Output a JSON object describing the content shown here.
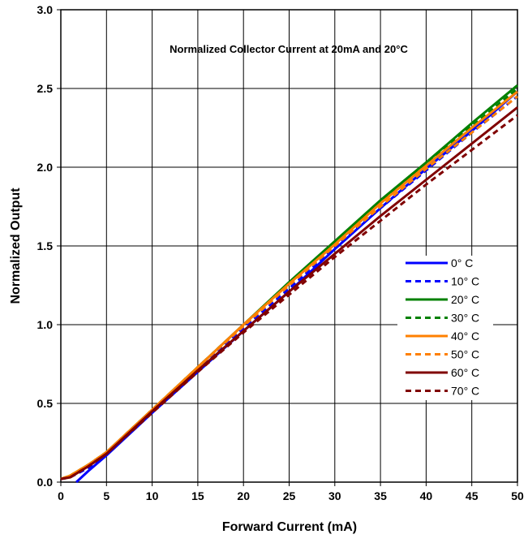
{
  "chart_data": {
    "type": "line",
    "title": "Normalized Collector Current at 20mA and 20°C",
    "xlabel": "Forward Current (mA)",
    "ylabel": "Normalized Output",
    "xlim": [
      0,
      50
    ],
    "ylim": [
      0,
      3.0
    ],
    "x_ticks": [
      "0",
      "5",
      "10",
      "15",
      "20",
      "25",
      "30",
      "35",
      "40",
      "45",
      "50"
    ],
    "y_ticks": [
      "0.0",
      "0.5",
      "1.0",
      "1.5",
      "2.0",
      "2.5",
      "3.0"
    ],
    "grid": true,
    "legend_position": "right",
    "series": [
      {
        "name": "0° C",
        "color": "#0000ff",
        "dash": "solid",
        "x": [
          1.7,
          3,
          5,
          10,
          15,
          20,
          25,
          30,
          35,
          40,
          45,
          50
        ],
        "y": [
          0.0,
          0.07,
          0.17,
          0.44,
          0.7,
          0.96,
          1.21,
          1.48,
          1.74,
          1.99,
          2.23,
          2.48
        ]
      },
      {
        "name": "10° C",
        "color": "#0000ff",
        "dash": "dashed",
        "x": [
          0,
          1,
          3,
          5,
          10,
          15,
          20,
          25,
          30,
          35,
          40,
          45,
          50
        ],
        "y": [
          0.02,
          0.03,
          0.09,
          0.18,
          0.45,
          0.71,
          0.98,
          1.23,
          1.49,
          1.74,
          1.98,
          2.22,
          2.45
        ]
      },
      {
        "name": "20° C",
        "color": "#008000",
        "dash": "solid",
        "x": [
          0,
          1,
          3,
          5,
          10,
          15,
          20,
          25,
          30,
          35,
          40,
          45,
          50
        ],
        "y": [
          0.02,
          0.04,
          0.11,
          0.19,
          0.46,
          0.73,
          1.0,
          1.27,
          1.53,
          1.79,
          2.03,
          2.28,
          2.52
        ]
      },
      {
        "name": "30° C",
        "color": "#008000",
        "dash": "dashed",
        "x": [
          0,
          1,
          3,
          5,
          10,
          15,
          20,
          25,
          30,
          35,
          40,
          45,
          50
        ],
        "y": [
          0.02,
          0.04,
          0.11,
          0.19,
          0.46,
          0.73,
          1.0,
          1.26,
          1.52,
          1.78,
          2.02,
          2.26,
          2.5
        ]
      },
      {
        "name": "40° C",
        "color": "#ff8000",
        "dash": "solid",
        "x": [
          0,
          1,
          3,
          5,
          10,
          15,
          20,
          25,
          30,
          35,
          40,
          45,
          50
        ],
        "y": [
          0.02,
          0.04,
          0.11,
          0.19,
          0.46,
          0.73,
          1.0,
          1.26,
          1.51,
          1.77,
          2.01,
          2.25,
          2.48
        ]
      },
      {
        "name": "50° C",
        "color": "#ff8000",
        "dash": "dashed",
        "x": [
          0,
          1,
          3,
          5,
          10,
          15,
          20,
          25,
          30,
          35,
          40,
          45,
          50
        ],
        "y": [
          0.02,
          0.04,
          0.11,
          0.19,
          0.46,
          0.73,
          0.99,
          1.25,
          1.5,
          1.75,
          1.99,
          2.22,
          2.45
        ]
      },
      {
        "name": "60° C",
        "color": "#800000",
        "dash": "solid",
        "x": [
          0,
          1,
          3,
          5,
          10,
          15,
          20,
          25,
          30,
          35,
          40,
          45,
          50
        ],
        "y": [
          0.02,
          0.03,
          0.1,
          0.18,
          0.45,
          0.71,
          0.96,
          1.21,
          1.45,
          1.69,
          1.92,
          2.15,
          2.38
        ]
      },
      {
        "name": "70° C",
        "color": "#800000",
        "dash": "dashed",
        "x": [
          0,
          1,
          3,
          5,
          10,
          15,
          20,
          25,
          30,
          35,
          40,
          45,
          50
        ],
        "y": [
          0.02,
          0.03,
          0.1,
          0.18,
          0.44,
          0.7,
          0.95,
          1.19,
          1.43,
          1.66,
          1.89,
          2.11,
          2.33
        ]
      }
    ]
  }
}
